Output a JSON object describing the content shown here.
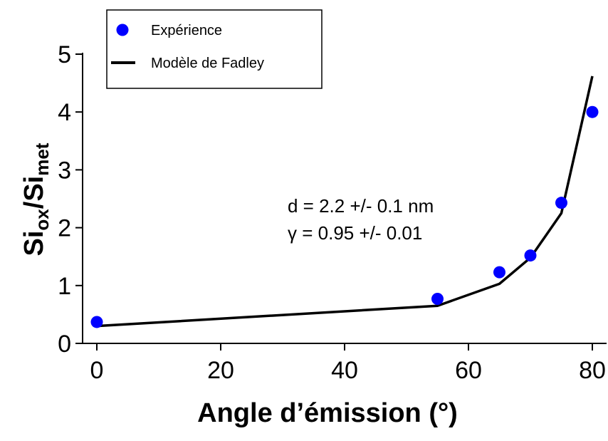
{
  "chart_data": {
    "type": "scatter",
    "xlabel": "Angle d’émission (°)",
    "ylabel_main": "Si",
    "ylabel_sub1": "ox",
    "ylabel_sep": "/Si",
    "ylabel_sub2": "met",
    "xlim": [
      0,
      80
    ],
    "ylim": [
      0,
      5
    ],
    "xticks": [
      0,
      20,
      40,
      60,
      80
    ],
    "yticks": [
      0,
      1,
      2,
      3,
      4,
      5
    ],
    "legend_position": "top-left",
    "series": [
      {
        "name": "Expérience",
        "kind": "scatter",
        "color": "#0000ff",
        "x": [
          0,
          55,
          65,
          70,
          75,
          80
        ],
        "y": [
          0.37,
          0.77,
          1.23,
          1.52,
          2.43,
          4.0
        ]
      },
      {
        "name": "Modèle de Fadley",
        "kind": "line",
        "color": "#000000",
        "x": [
          0,
          55,
          65,
          70,
          75,
          80
        ],
        "y": [
          0.3,
          0.65,
          1.03,
          1.48,
          2.25,
          4.62
        ]
      }
    ],
    "annotations": [
      "d = 2.2 +/- 0.1 nm",
      "γ = 0.95 +/- 0.01"
    ]
  }
}
